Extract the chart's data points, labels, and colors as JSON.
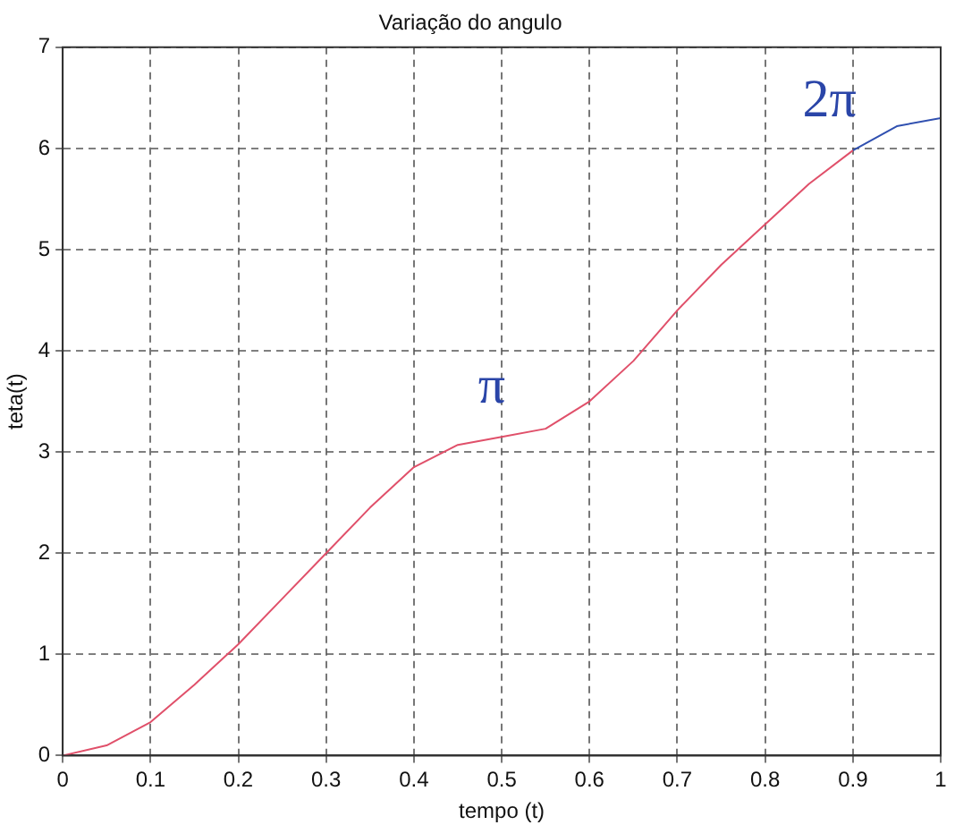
{
  "chart_data": {
    "type": "line",
    "title": "Variação do angulo",
    "xlabel": "tempo (t)",
    "ylabel": "teta(t)",
    "series": [
      {
        "color": "#e0506a",
        "x": [
          0,
          0.05,
          0.1,
          0.15,
          0.2,
          0.25,
          0.3,
          0.35,
          0.4,
          0.45,
          0.5,
          0.55,
          0.6,
          0.65,
          0.7,
          0.75,
          0.8,
          0.85,
          0.9
        ],
        "values": [
          0,
          0.1,
          0.33,
          0.7,
          1.1,
          1.55,
          2.0,
          2.45,
          2.85,
          3.07,
          3.15,
          3.23,
          3.5,
          3.9,
          4.4,
          4.85,
          5.25,
          5.65,
          5.98
        ]
      },
      {
        "color": "#3050b0",
        "x": [
          0.9,
          0.95,
          1.0
        ],
        "values": [
          5.98,
          6.22,
          6.3
        ]
      }
    ],
    "annotations": [
      {
        "text": "π",
        "x": 0.5,
        "y": 3.15
      },
      {
        "text": "2π",
        "x": 0.9,
        "y": 5.98
      }
    ],
    "xlim": [
      0,
      1
    ],
    "xticks": [
      0,
      0.1,
      0.2,
      0.3,
      0.4,
      0.5,
      0.6,
      0.7,
      0.8,
      0.9,
      1
    ],
    "ylim": [
      0,
      7
    ],
    "yticks": [
      0,
      1,
      2,
      3,
      4,
      5,
      6,
      7
    ],
    "grid": true,
    "legend": false,
    "marker": "none",
    "line_style": "solid"
  }
}
